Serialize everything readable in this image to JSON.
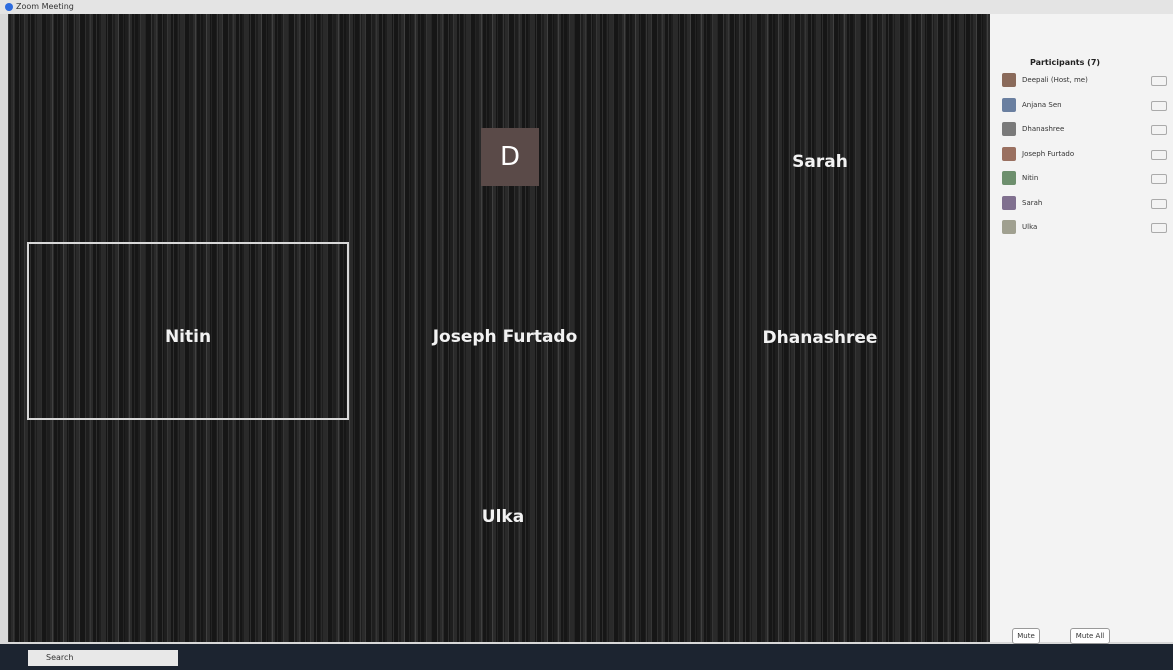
{
  "window": {
    "title": "Zoom Meeting"
  },
  "tiles": {
    "avatar": "D",
    "names": [
      "Sarah",
      "Nitin",
      "Joseph Furtado",
      "Dhanashree",
      "Ulka"
    ]
  },
  "participants": {
    "title": "Participants (7)",
    "list": [
      "Deepali (Host, me)",
      "Anjana Sen",
      "Dhanashree",
      "Joseph Furtado",
      "Nitin",
      "Sarah",
      "Ulka"
    ],
    "buttons": [
      "Mute",
      "Mute All"
    ]
  },
  "taskbar": {
    "search": "Search"
  }
}
